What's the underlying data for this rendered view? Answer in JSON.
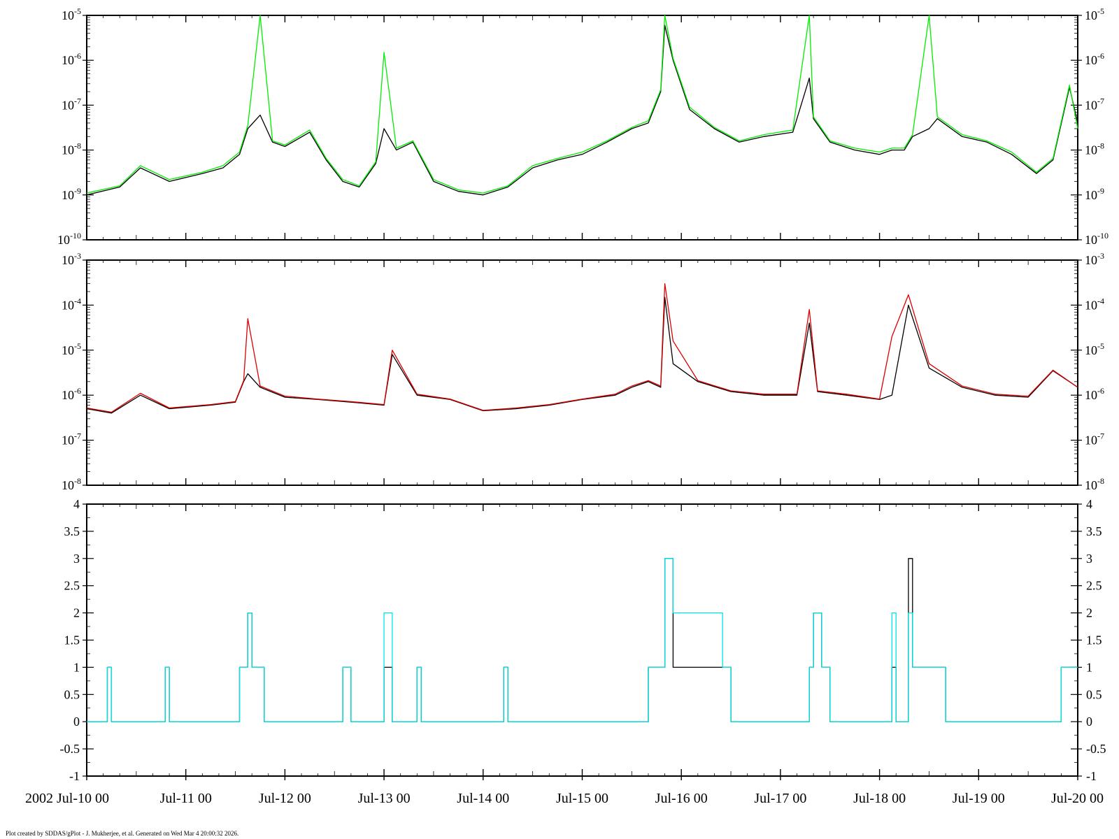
{
  "footer": {
    "credit": "Plot created by SDDAS/gPlot - J. Mukherjee, et al.  Generated on Wed Mar 4 20:00:32 2026."
  },
  "colors": {
    "black": "#000000",
    "green": "#00ee00",
    "red": "#dd0000",
    "cyan": "#00e5e5",
    "background": "#ffffff"
  },
  "chart_data": [
    {
      "type": "line",
      "yscale": "log",
      "ylim": [
        1e-10,
        1e-05
      ],
      "ytick_exponents": [
        -5,
        -6,
        -7,
        -8,
        -9,
        -10
      ],
      "xlim": [
        "2002-07-10T00:00",
        "2002-07-20T00:00"
      ],
      "grid": false,
      "series": [
        {
          "color": "#000000",
          "x": [
            "2002-07-10T00:00",
            "2002-07-10T08:00",
            "2002-07-10T13:00",
            "2002-07-10T20:00",
            "2002-07-11T04:00",
            "2002-07-11T09:00",
            "2002-07-11T13:00",
            "2002-07-11T15:00",
            "2002-07-11T18:00",
            "2002-07-11T21:00",
            "2002-07-12T00:00",
            "2002-07-12T06:00",
            "2002-07-12T10:00",
            "2002-07-12T14:00",
            "2002-07-12T18:00",
            "2002-07-12T22:00",
            "2002-07-13T00:00",
            "2002-07-13T03:00",
            "2002-07-13T07:00",
            "2002-07-13T12:00",
            "2002-07-13T18:00",
            "2002-07-14T00:00",
            "2002-07-14T06:00",
            "2002-07-14T12:00",
            "2002-07-14T18:00",
            "2002-07-15T00:00",
            "2002-07-15T06:00",
            "2002-07-15T12:00",
            "2002-07-15T16:00",
            "2002-07-15T19:00",
            "2002-07-15T20:00",
            "2002-07-15T22:00",
            "2002-07-16T02:00",
            "2002-07-16T08:00",
            "2002-07-16T14:00",
            "2002-07-16T20:00",
            "2002-07-17T03:00",
            "2002-07-17T07:00",
            "2002-07-17T08:00",
            "2002-07-17T12:00",
            "2002-07-17T18:00",
            "2002-07-18T00:00",
            "2002-07-18T03:00",
            "2002-07-18T06:00",
            "2002-07-18T08:00",
            "2002-07-18T12:00",
            "2002-07-18T14:00",
            "2002-07-18T20:00",
            "2002-07-19T02:00",
            "2002-07-19T08:00",
            "2002-07-19T14:00",
            "2002-07-19T18:00",
            "2002-07-19T22:00",
            "2002-07-20T00:00"
          ],
          "y": [
            1e-09,
            1.5e-09,
            4e-09,
            2e-09,
            3e-09,
            4e-09,
            8e-09,
            3e-08,
            6e-08,
            1.5e-08,
            1.2e-08,
            2.5e-08,
            6e-09,
            2e-09,
            1.5e-09,
            5e-09,
            3e-08,
            1e-08,
            1.5e-08,
            2e-09,
            1.2e-09,
            1e-09,
            1.5e-09,
            4e-09,
            6e-09,
            8e-09,
            1.5e-08,
            3e-08,
            4e-08,
            2e-07,
            6e-06,
            1e-06,
            8e-08,
            3e-08,
            1.5e-08,
            2e-08,
            2.5e-08,
            4e-07,
            5e-08,
            1.5e-08,
            1e-08,
            8e-09,
            1e-08,
            1e-08,
            2e-08,
            3e-08,
            5e-08,
            2e-08,
            1.5e-08,
            8e-09,
            3e-09,
            6e-09,
            2.5e-07,
            4e-08
          ]
        },
        {
          "color": "#00ee00",
          "x": [
            "2002-07-10T00:00",
            "2002-07-10T08:00",
            "2002-07-10T13:00",
            "2002-07-10T20:00",
            "2002-07-11T04:00",
            "2002-07-11T09:00",
            "2002-07-11T13:00",
            "2002-07-11T15:00",
            "2002-07-11T18:00",
            "2002-07-11T21:00",
            "2002-07-12T00:00",
            "2002-07-12T06:00",
            "2002-07-12T10:00",
            "2002-07-12T14:00",
            "2002-07-12T18:00",
            "2002-07-12T22:00",
            "2002-07-13T00:00",
            "2002-07-13T03:00",
            "2002-07-13T07:00",
            "2002-07-13T12:00",
            "2002-07-13T18:00",
            "2002-07-14T00:00",
            "2002-07-14T06:00",
            "2002-07-14T12:00",
            "2002-07-14T18:00",
            "2002-07-15T00:00",
            "2002-07-15T06:00",
            "2002-07-15T12:00",
            "2002-07-15T16:00",
            "2002-07-15T19:00",
            "2002-07-15T20:00",
            "2002-07-15T22:00",
            "2002-07-16T02:00",
            "2002-07-16T08:00",
            "2002-07-16T14:00",
            "2002-07-16T20:00",
            "2002-07-17T03:00",
            "2002-07-17T07:00",
            "2002-07-17T08:00",
            "2002-07-17T12:00",
            "2002-07-17T18:00",
            "2002-07-18T00:00",
            "2002-07-18T03:00",
            "2002-07-18T06:00",
            "2002-07-18T08:00",
            "2002-07-18T12:00",
            "2002-07-18T14:00",
            "2002-07-18T20:00",
            "2002-07-19T02:00",
            "2002-07-19T08:00",
            "2002-07-19T14:00",
            "2002-07-19T18:00",
            "2002-07-19T22:00",
            "2002-07-20T00:00"
          ],
          "y": [
            1.1e-09,
            1.6e-09,
            4.5e-09,
            2.2e-09,
            3.2e-09,
            4.5e-09,
            9e-09,
            3.5e-08,
            1e-05,
            1.6e-08,
            1.3e-08,
            2.8e-08,
            6.5e-09,
            2.2e-09,
            1.6e-09,
            5.5e-09,
            1.5e-06,
            1.1e-08,
            1.6e-08,
            2.2e-09,
            1.3e-09,
            1.1e-09,
            1.6e-09,
            4.5e-09,
            6.5e-09,
            9e-09,
            1.6e-08,
            3.2e-08,
            4.5e-08,
            2.2e-07,
            1e-05,
            1.1e-06,
            9e-08,
            3.2e-08,
            1.6e-08,
            2.2e-08,
            2.8e-08,
            1e-05,
            5.5e-08,
            1.6e-08,
            1.1e-08,
            9e-09,
            1.1e-08,
            1.1e-08,
            2.2e-08,
            1e-05,
            5.5e-08,
            2.2e-08,
            1.6e-08,
            9e-09,
            3.2e-09,
            6.5e-09,
            2.8e-07,
            3e-08
          ]
        }
      ]
    },
    {
      "type": "line",
      "yscale": "log",
      "ylim": [
        1e-08,
        0.001
      ],
      "ytick_exponents": [
        -3,
        -4,
        -5,
        -6,
        -7,
        -8
      ],
      "xlim": [
        "2002-07-10T00:00",
        "2002-07-20T00:00"
      ],
      "grid": false,
      "series": [
        {
          "color": "#000000",
          "x": [
            "2002-07-10T00:00",
            "2002-07-10T06:00",
            "2002-07-10T13:00",
            "2002-07-10T20:00",
            "2002-07-11T06:00",
            "2002-07-11T12:00",
            "2002-07-11T14:00",
            "2002-07-11T15:00",
            "2002-07-11T18:00",
            "2002-07-12T00:00",
            "2002-07-12T08:00",
            "2002-07-12T16:00",
            "2002-07-13T00:00",
            "2002-07-13T02:00",
            "2002-07-13T08:00",
            "2002-07-13T16:00",
            "2002-07-14T00:00",
            "2002-07-14T08:00",
            "2002-07-14T16:00",
            "2002-07-15T00:00",
            "2002-07-15T08:00",
            "2002-07-15T12:00",
            "2002-07-15T16:00",
            "2002-07-15T19:00",
            "2002-07-15T20:00",
            "2002-07-15T22:00",
            "2002-07-16T04:00",
            "2002-07-16T12:00",
            "2002-07-16T20:00",
            "2002-07-17T04:00",
            "2002-07-17T07:00",
            "2002-07-17T09:00",
            "2002-07-17T16:00",
            "2002-07-18T00:00",
            "2002-07-18T03:00",
            "2002-07-18T07:00",
            "2002-07-18T12:00",
            "2002-07-18T20:00",
            "2002-07-19T04:00",
            "2002-07-19T12:00",
            "2002-07-19T18:00",
            "2002-07-20T00:00"
          ],
          "y": [
            5e-07,
            4e-07,
            1e-06,
            5e-07,
            6e-07,
            7e-07,
            2e-06,
            3e-06,
            1.5e-06,
            9e-07,
            8e-07,
            7e-07,
            6e-07,
            8e-06,
            1e-06,
            8e-07,
            4.5e-07,
            5e-07,
            6e-07,
            8e-07,
            1e-06,
            1.5e-06,
            2e-06,
            1.5e-06,
            0.00015,
            5e-06,
            2e-06,
            1.2e-06,
            1e-06,
            1e-06,
            4e-05,
            1.2e-06,
            1e-06,
            8e-07,
            1e-06,
            0.0001,
            4e-06,
            1.5e-06,
            1e-06,
            9e-07,
            3.5e-06,
            1.5e-06
          ]
        },
        {
          "color": "#dd0000",
          "x": [
            "2002-07-10T00:00",
            "2002-07-10T06:00",
            "2002-07-10T13:00",
            "2002-07-10T20:00",
            "2002-07-11T06:00",
            "2002-07-11T12:00",
            "2002-07-11T14:00",
            "2002-07-11T15:00",
            "2002-07-11T18:00",
            "2002-07-12T00:00",
            "2002-07-12T08:00",
            "2002-07-12T16:00",
            "2002-07-13T00:00",
            "2002-07-13T02:00",
            "2002-07-13T08:00",
            "2002-07-13T16:00",
            "2002-07-14T00:00",
            "2002-07-14T08:00",
            "2002-07-14T16:00",
            "2002-07-15T00:00",
            "2002-07-15T08:00",
            "2002-07-15T12:00",
            "2002-07-15T16:00",
            "2002-07-15T19:00",
            "2002-07-15T20:00",
            "2002-07-15T22:00",
            "2002-07-16T04:00",
            "2002-07-16T12:00",
            "2002-07-16T20:00",
            "2002-07-17T04:00",
            "2002-07-17T07:00",
            "2002-07-17T09:00",
            "2002-07-17T16:00",
            "2002-07-18T00:00",
            "2002-07-18T03:00",
            "2002-07-18T07:00",
            "2002-07-18T12:00",
            "2002-07-18T20:00",
            "2002-07-19T04:00",
            "2002-07-19T12:00",
            "2002-07-19T18:00",
            "2002-07-20T00:00"
          ],
          "y": [
            5.2e-07,
            4.2e-07,
            1.1e-06,
            5.2e-07,
            6.2e-07,
            7.2e-07,
            2.1e-06,
            5e-05,
            1.6e-06,
            9.5e-07,
            8.2e-07,
            7.2e-07,
            6.2e-07,
            1e-05,
            1.05e-06,
            8.2e-07,
            4.6e-07,
            5.2e-07,
            6.2e-07,
            8.2e-07,
            1.05e-06,
            1.6e-06,
            2.1e-06,
            1.6e-06,
            0.0003,
            1.6e-05,
            2.1e-06,
            1.25e-06,
            1.05e-06,
            1.05e-06,
            8e-05,
            1.25e-06,
            1.05e-06,
            8.2e-07,
            2e-05,
            0.00017,
            5e-06,
            1.6e-06,
            1.05e-06,
            9.5e-07,
            3.6e-06,
            1.5e-06
          ]
        }
      ]
    },
    {
      "type": "line",
      "yscale": "linear",
      "ylim": [
        -1,
        4
      ],
      "yticks": [
        "4",
        "3.5",
        "3",
        "2.5",
        "2",
        "1.5",
        "1",
        "0.5",
        "0",
        "-0.5",
        "-1"
      ],
      "xlim": [
        "2002-07-10T00:00",
        "2002-07-20T00:00"
      ],
      "grid": false,
      "series": [
        {
          "color": "#000000",
          "step": true,
          "x": [
            "2002-07-10T00:00",
            "2002-07-10T05:00",
            "2002-07-10T06:00",
            "2002-07-10T19:00",
            "2002-07-10T20:00",
            "2002-07-11T13:00",
            "2002-07-11T14:00",
            "2002-07-11T15:00",
            "2002-07-11T16:00",
            "2002-07-11T18:00",
            "2002-07-11T19:00",
            "2002-07-12T14:00",
            "2002-07-12T16:00",
            "2002-07-13T00:00",
            "2002-07-13T02:00",
            "2002-07-13T08:00",
            "2002-07-13T09:00",
            "2002-07-14T05:00",
            "2002-07-14T06:00",
            "2002-07-15T16:00",
            "2002-07-15T19:00",
            "2002-07-15T20:00",
            "2002-07-15T22:00",
            "2002-07-16T10:00",
            "2002-07-16T12:00",
            "2002-07-17T07:00",
            "2002-07-17T08:00",
            "2002-07-17T10:00",
            "2002-07-17T12:00",
            "2002-07-18T03:00",
            "2002-07-18T04:00",
            "2002-07-18T07:00",
            "2002-07-18T08:00",
            "2002-07-18T14:00",
            "2002-07-18T16:00",
            "2002-07-19T20:00",
            "2002-07-20T00:00"
          ],
          "y": [
            0,
            1,
            0,
            1,
            0,
            1,
            1,
            2,
            1,
            1,
            0,
            1,
            0,
            1,
            0,
            1,
            0,
            1,
            0,
            1,
            1,
            3,
            1,
            1,
            0,
            1,
            2,
            1,
            0,
            1,
            0,
            3,
            1,
            1,
            0,
            1,
            1
          ]
        },
        {
          "color": "#00e5e5",
          "step": true,
          "x": [
            "2002-07-10T00:00",
            "2002-07-10T05:00",
            "2002-07-10T06:00",
            "2002-07-10T19:00",
            "2002-07-10T20:00",
            "2002-07-11T13:00",
            "2002-07-11T14:00",
            "2002-07-11T15:00",
            "2002-07-11T16:00",
            "2002-07-11T18:00",
            "2002-07-11T19:00",
            "2002-07-12T14:00",
            "2002-07-12T16:00",
            "2002-07-13T00:00",
            "2002-07-13T02:00",
            "2002-07-13T08:00",
            "2002-07-13T09:00",
            "2002-07-14T05:00",
            "2002-07-14T06:00",
            "2002-07-15T16:00",
            "2002-07-15T19:00",
            "2002-07-15T20:00",
            "2002-07-15T22:00",
            "2002-07-16T10:00",
            "2002-07-16T12:00",
            "2002-07-17T07:00",
            "2002-07-17T08:00",
            "2002-07-17T10:00",
            "2002-07-17T12:00",
            "2002-07-18T03:00",
            "2002-07-18T04:00",
            "2002-07-18T07:00",
            "2002-07-18T08:00",
            "2002-07-18T14:00",
            "2002-07-18T16:00",
            "2002-07-19T20:00",
            "2002-07-20T00:00"
          ],
          "y": [
            0,
            1,
            0,
            1,
            0,
            1,
            1,
            2,
            1,
            1,
            0,
            1,
            0,
            2,
            0,
            1,
            0,
            1,
            0,
            1,
            1,
            3,
            2,
            1,
            0,
            1,
            2,
            1,
            0,
            2,
            0,
            2,
            1,
            1,
            0,
            1,
            1
          ]
        }
      ]
    }
  ],
  "x_axis": {
    "tick_labels": [
      "2002 Jul-10 00",
      "Jul-11 00",
      "Jul-12 00",
      "Jul-13 00",
      "Jul-14 00",
      "Jul-15 00",
      "Jul-16 00",
      "Jul-17 00",
      "Jul-18 00",
      "Jul-19 00",
      "Jul-20 00"
    ]
  }
}
